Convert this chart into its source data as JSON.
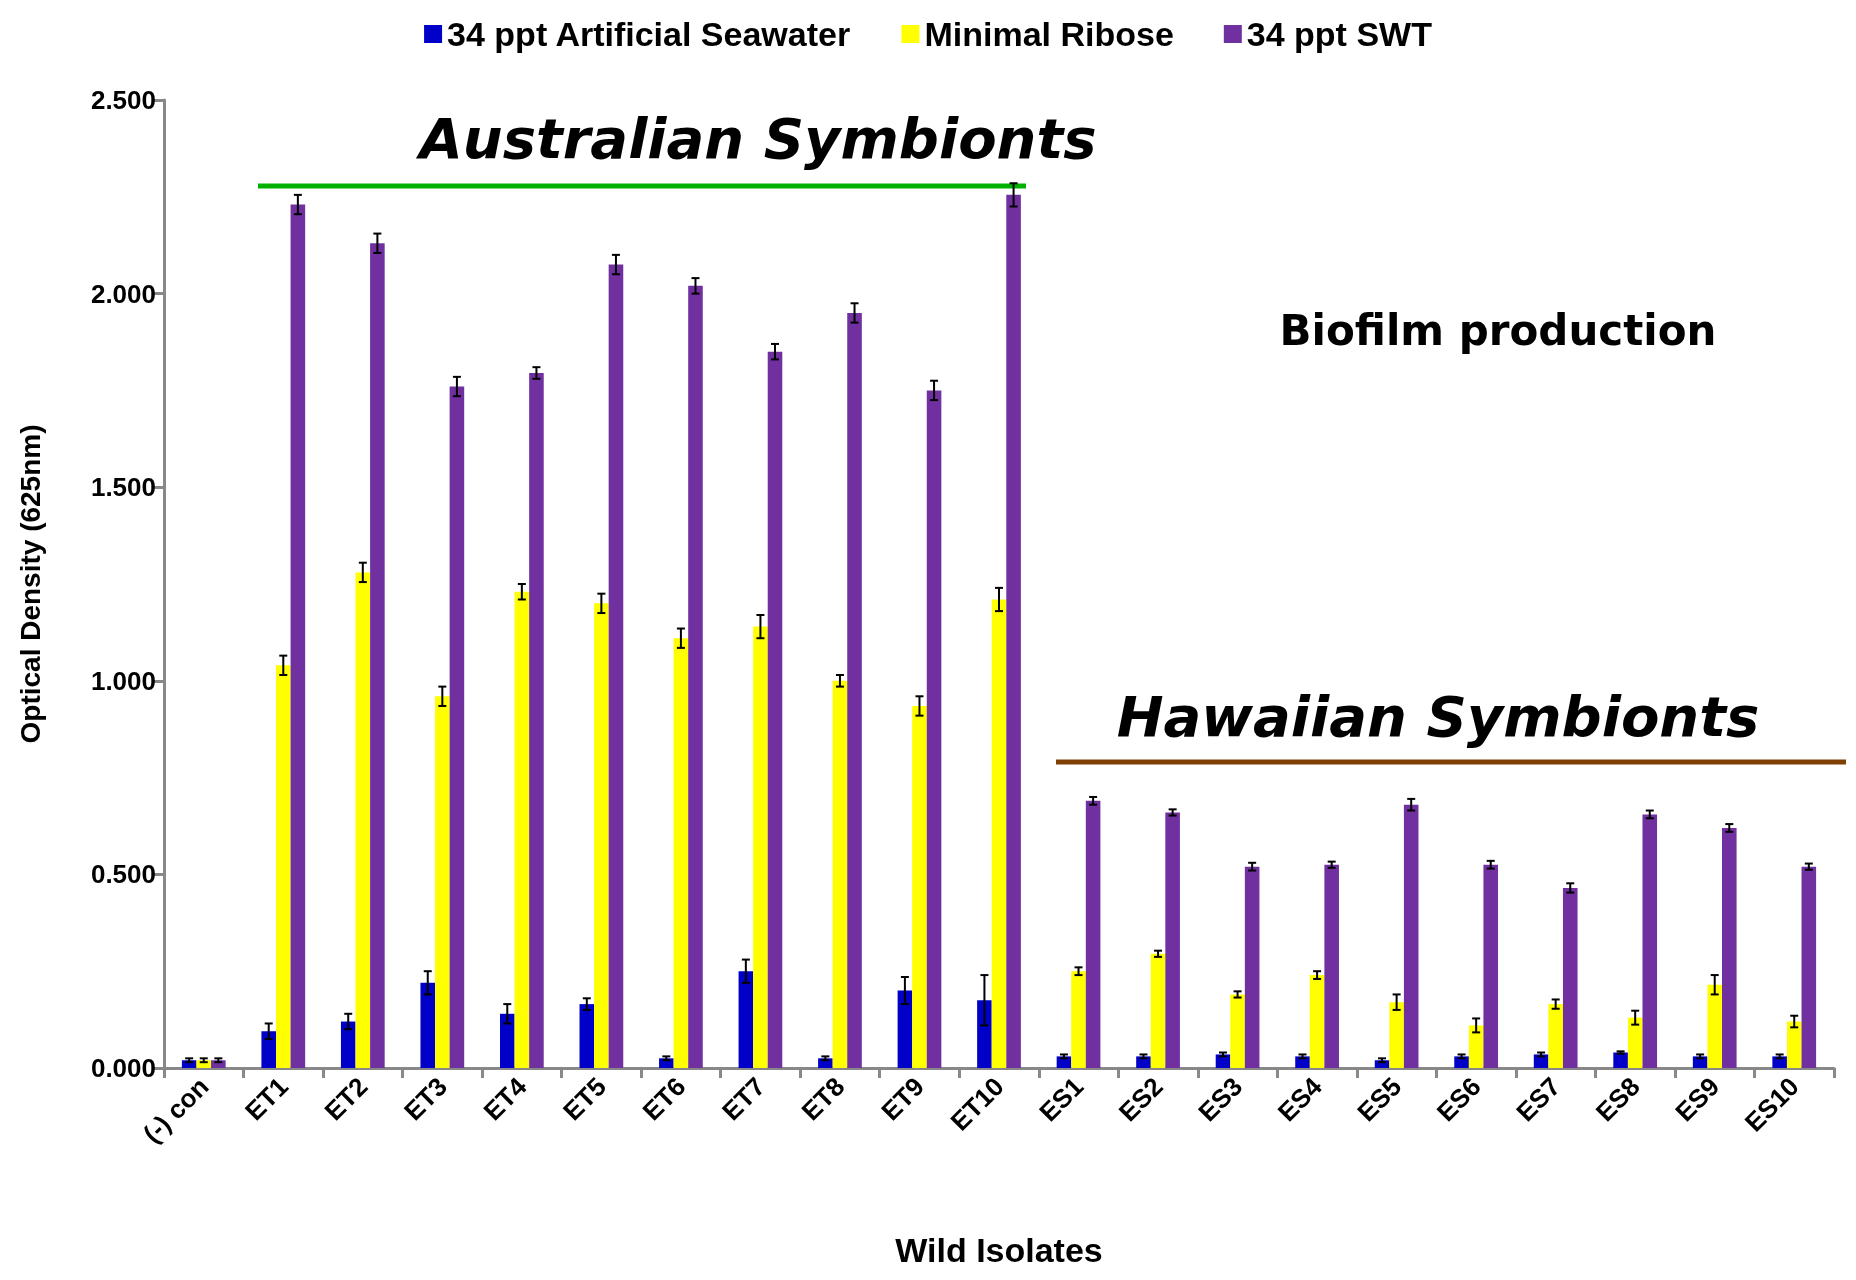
{
  "chart_data": {
    "type": "bar",
    "xlabel": "Wild Isolates",
    "ylabel": "Optical Density (625nm)",
    "categories": [
      "(-) con",
      "ET1",
      "ET2",
      "ET3",
      "ET4",
      "ET5",
      "ET6",
      "ET7",
      "ET8",
      "ET9",
      "ET10",
      "ES1",
      "ES2",
      "ES3",
      "ES4",
      "ES5",
      "ES6",
      "ES7",
      "ES8",
      "ES9",
      "ES10"
    ],
    "series": [
      {
        "name": "34 ppt Artificial Seawater",
        "color": "#0000c8",
        "values": [
          0.02,
          0.095,
          0.12,
          0.22,
          0.14,
          0.165,
          0.025,
          0.25,
          0.025,
          0.2,
          0.175,
          0.03,
          0.03,
          0.035,
          0.03,
          0.02,
          0.03,
          0.035,
          0.04,
          0.03,
          0.03
        ],
        "errors": [
          0.005,
          0.02,
          0.02,
          0.03,
          0.025,
          0.015,
          0.005,
          0.03,
          0.005,
          0.035,
          0.065,
          0.005,
          0.005,
          0.005,
          0.005,
          0.005,
          0.005,
          0.005,
          0.003,
          0.005,
          0.005
        ]
      },
      {
        "name": "Minimal Ribose",
        "color": "#ffff00",
        "values": [
          0.02,
          1.04,
          1.28,
          0.96,
          1.23,
          1.2,
          1.11,
          1.14,
          1.0,
          0.935,
          1.21,
          0.25,
          0.295,
          0.19,
          0.24,
          0.17,
          0.11,
          0.165,
          0.13,
          0.215,
          0.12
        ],
        "errors": [
          0.005,
          0.025,
          0.025,
          0.025,
          0.02,
          0.025,
          0.025,
          0.03,
          0.015,
          0.025,
          0.03,
          0.01,
          0.008,
          0.008,
          0.01,
          0.02,
          0.018,
          0.012,
          0.018,
          0.025,
          0.015
        ]
      },
      {
        "name": "34 ppt SWT",
        "color": "#7030a0",
        "values": [
          0.02,
          2.23,
          2.13,
          1.76,
          1.795,
          2.075,
          2.02,
          1.85,
          1.95,
          1.75,
          2.255,
          0.69,
          0.66,
          0.52,
          0.525,
          0.68,
          0.525,
          0.465,
          0.655,
          0.62,
          0.52
        ],
        "errors": [
          0.005,
          0.025,
          0.025,
          0.025,
          0.015,
          0.025,
          0.02,
          0.02,
          0.025,
          0.025,
          0.03,
          0.01,
          0.008,
          0.01,
          0.008,
          0.015,
          0.01,
          0.012,
          0.01,
          0.01,
          0.008
        ]
      }
    ],
    "ylim": [
      0,
      2.5
    ],
    "yticks": [
      {
        "value": 0,
        "label": "0.000"
      },
      {
        "value": 0.5,
        "label": "0.500"
      },
      {
        "value": 1,
        "label": "1.000"
      },
      {
        "value": 1.5,
        "label": "1.500"
      },
      {
        "value": 2,
        "label": "2.000"
      },
      {
        "value": 2.5,
        "label": "2.500"
      }
    ],
    "grid": false,
    "legend": "top",
    "annotations": [
      "Australian Symbionts",
      "Hawaiian Symbionts",
      "Biofilm production"
    ]
  }
}
